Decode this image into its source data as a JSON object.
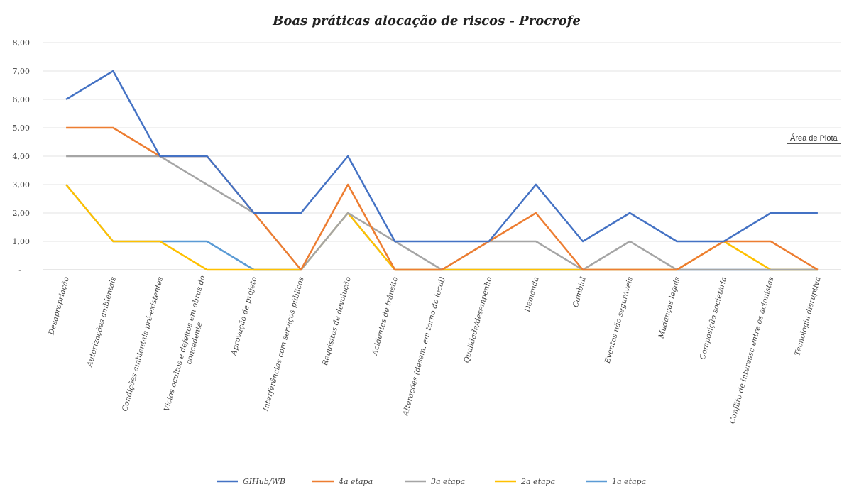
{
  "chart_data": {
    "type": "line",
    "title": "Boas práticas alocação de riscos - Procrofe",
    "xlabel": "",
    "ylabel": "",
    "ylim": [
      0,
      8
    ],
    "yticks": [
      "-",
      "1,00",
      "2,00",
      "3,00",
      "4,00",
      "5,00",
      "6,00",
      "7,00",
      "8,00"
    ],
    "grid": true,
    "legend_position": "bottom",
    "categories": [
      "Desapropriação",
      "Autorizações ambientais",
      "Condições ambientais pré-existentes",
      [
        "Vícios ocultos e defeitos em obras do",
        "concedente"
      ],
      "Aprovação de projeto",
      "Interferências com serviços públicos",
      "Requisitos de devolução",
      "Acidentes de trânsito",
      "Alterações (desem. em torno do local)",
      "Qualidade/desempenho",
      "Demanda",
      "Cambial",
      "Eventos não seguráveis",
      "Mudanças legais",
      "Composição societária",
      "Conflito de interesse entre os acionistas",
      "Tecnologia disruptiva"
    ],
    "series": [
      {
        "name": "GIHub/WB",
        "color": "#4472C4",
        "values": [
          6,
          7,
          4,
          4,
          2,
          2,
          4,
          1,
          1,
          1,
          3,
          1,
          2,
          1,
          1,
          2,
          2
        ]
      },
      {
        "name": "4a etapa",
        "color": "#ED7D31",
        "values": [
          5,
          5,
          4,
          4,
          2,
          0,
          3,
          0,
          0,
          1,
          2,
          0,
          0,
          0,
          1,
          1,
          0
        ]
      },
      {
        "name": "3a etapa",
        "color": "#A5A5A5",
        "values": [
          4,
          4,
          4,
          3,
          2,
          0,
          2,
          1,
          0,
          1,
          1,
          0,
          1,
          0,
          0,
          0,
          0
        ]
      },
      {
        "name": "2a etapa",
        "color": "#FFC000",
        "values": [
          3,
          1,
          1,
          0,
          0,
          0,
          2,
          0,
          0,
          0,
          0,
          0,
          0,
          0,
          1,
          0,
          0
        ]
      },
      {
        "name": "1a etapa",
        "color": "#5B9BD5",
        "values": [
          3,
          1,
          1,
          1,
          0,
          0,
          2,
          0,
          0,
          0,
          0,
          0,
          0,
          0,
          0,
          0,
          0
        ]
      }
    ]
  },
  "tooltip": {
    "text": "Área de Plota"
  }
}
